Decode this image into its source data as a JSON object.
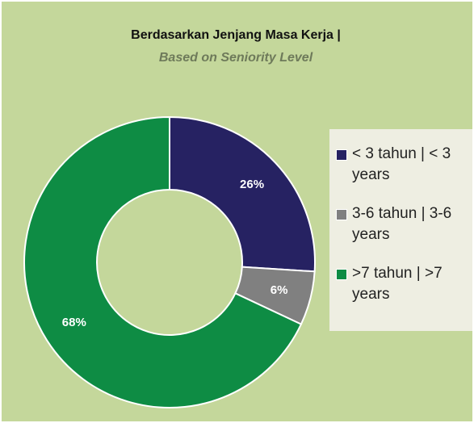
{
  "chart_data": {
    "type": "donut",
    "title": "Berdasarkan Jenjang Masa Kerja |",
    "subtitle": "Based on Seniority Level",
    "categories": [
      "< 3 tahun | < 3 years",
      "3-6 tahun | 3-6 years",
      ">7 tahun | >7 years"
    ],
    "values": [
      26,
      6,
      68
    ],
    "value_labels": [
      "26%",
      "6%",
      "68%"
    ],
    "colors": [
      "#262262",
      "#808080",
      "#0e8c44"
    ],
    "legend": "right"
  }
}
